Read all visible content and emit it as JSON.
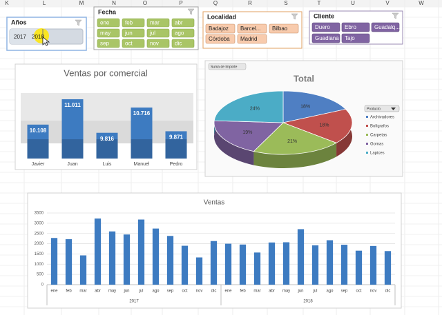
{
  "column_headers": [
    "K",
    "L",
    "M",
    "N",
    "O",
    "P",
    "Q",
    "R",
    "S",
    "T",
    "U",
    "V",
    "W"
  ],
  "slicers": [
    {
      "title": "Años",
      "items": [
        "2017",
        "2018"
      ]
    },
    {
      "title": "Fecha",
      "items": [
        "ene",
        "feb",
        "mar",
        "abr",
        "may",
        "jun",
        "jul",
        "ago",
        "sep",
        "oct",
        "nov",
        "dic"
      ]
    },
    {
      "title": "Localidad",
      "items": [
        "Badajoz",
        "Barcel...",
        "Bilbao",
        "Córdoba",
        "Madrid"
      ]
    },
    {
      "title": "Cliente",
      "items": [
        "Duero",
        "Ebro",
        "Guadalq...",
        "Guadiana",
        "Tajo"
      ]
    }
  ],
  "chart_data": [
    {
      "type": "bar",
      "title": "Ventas por comercial",
      "categories": [
        "Javier",
        "Juan",
        "Luis",
        "Manuel",
        "Pedro"
      ],
      "values": [
        10108,
        11011,
        9816,
        10716,
        9871
      ],
      "value_labels": [
        "10.108",
        "11.011",
        "9.816",
        "10.716",
        "9.871"
      ],
      "color": "#3d7bc1",
      "ylim": [
        8900,
        11600
      ]
    },
    {
      "type": "pie",
      "title": "Total",
      "button": "Suma de Importe",
      "legend_title": "Producto",
      "categories": [
        "Archivadores",
        "Bolígrafos",
        "Carpetas",
        "Gomas",
        "Lapices"
      ],
      "values": [
        18,
        18,
        21,
        19,
        24
      ],
      "value_labels": [
        "18%",
        "18%",
        "21%",
        "19%",
        "24%"
      ],
      "colors": [
        "#4f7fc3",
        "#c0504d",
        "#9bbb59",
        "#8064a2",
        "#4bacc6"
      ]
    },
    {
      "type": "bar",
      "title": "Ventas",
      "categories": [
        "ene",
        "feb",
        "mar",
        "abr",
        "may",
        "jun",
        "jul",
        "ago",
        "sep",
        "oct",
        "nov",
        "dic",
        "ene",
        "feb",
        "mar",
        "abr",
        "may",
        "jun",
        "jul",
        "ago",
        "sep",
        "oct",
        "nov",
        "dic"
      ],
      "groups": [
        "2017",
        "2018"
      ],
      "values": [
        2280,
        2220,
        1430,
        3230,
        2600,
        2450,
        3180,
        2740,
        2380,
        1900,
        1330,
        2130,
        2000,
        1960,
        1570,
        2060,
        2070,
        2710,
        1920,
        2170,
        1950,
        1660,
        1890,
        1640
      ],
      "color": "#3d7bc1",
      "ylim": [
        0,
        3500
      ],
      "yticks": [
        0,
        500,
        1000,
        1500,
        2000,
        2500,
        3000,
        3500
      ],
      "grid": true
    }
  ]
}
